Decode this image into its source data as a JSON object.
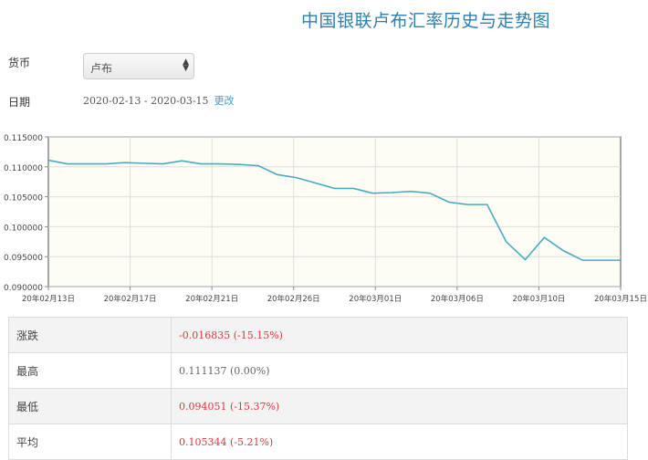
{
  "header": {
    "title": "中国银联卢布汇率历史与走势图"
  },
  "form": {
    "currency_label": "货币",
    "currency_value": "卢布",
    "date_label": "日期",
    "date_range": "2020-02-13 - 2020-03-15",
    "change_link": "更改"
  },
  "chart_data": {
    "type": "line",
    "title": "",
    "ylim": [
      0.09,
      0.115
    ],
    "yticks": [
      "0.115000",
      "0.110000",
      "0.105000",
      "0.100000",
      "0.095000",
      "0.090000"
    ],
    "xticks": [
      "20年02月13日",
      "20年02月17日",
      "20年02月21日",
      "20年02月26日",
      "20年03月01日",
      "20年03月06日",
      "20年03月10日",
      "20年03月15日"
    ],
    "grid": true,
    "line_color": "#4aaabf",
    "plot_background": "#fdfdf6",
    "values": [
      0.1111,
      0.1105,
      0.1105,
      0.1105,
      0.1107,
      0.1106,
      0.1105,
      0.111,
      0.1105,
      0.1105,
      0.1104,
      0.1102,
      0.1087,
      0.1082,
      0.1073,
      0.1064,
      0.1064,
      0.1056,
      0.1057,
      0.1059,
      0.1056,
      0.1041,
      0.1037,
      0.1037,
      0.0975,
      0.0945,
      0.0982,
      0.096,
      0.0944,
      0.0944,
      0.0944
    ]
  },
  "stats": [
    {
      "label": "涨跌",
      "value": "-0.016835 (-15.15%)",
      "color": "red"
    },
    {
      "label": "最高",
      "value": "0.111137 (0.00%)",
      "color": "gray"
    },
    {
      "label": "最低",
      "value": "0.094051 (-15.37%)",
      "color": "red"
    },
    {
      "label": "平均",
      "value": "0.105344 (-5.21%)",
      "color": "red"
    }
  ]
}
